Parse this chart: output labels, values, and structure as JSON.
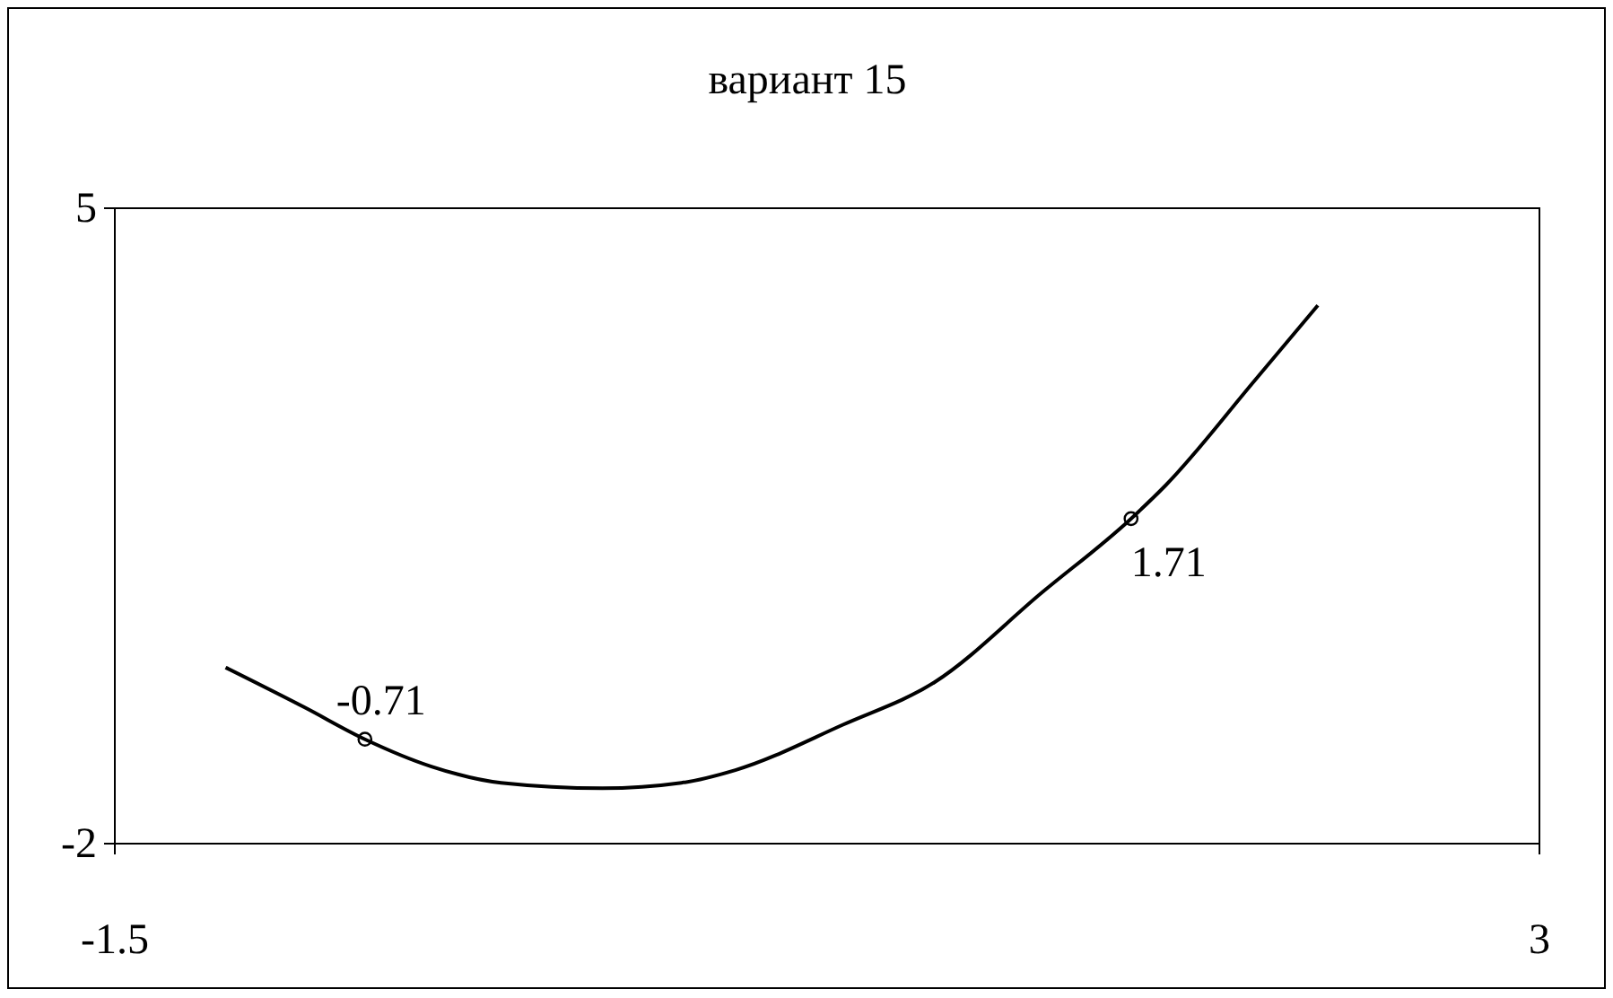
{
  "chart_data": {
    "type": "line",
    "title": "вариант 15",
    "xlim": [
      -1.5,
      3
    ],
    "xticks": [
      -1.5,
      3
    ],
    "ylim": [
      -2,
      5
    ],
    "yticks": [
      5,
      -2
    ],
    "grid": false,
    "series": [
      {
        "color": "#000000",
        "marker": "none",
        "line_style": "solid",
        "x": [
          -1.15,
          -0.9,
          -0.71,
          -0.5,
          -0.28,
          0.04,
          0.29,
          0.46,
          0.8,
          1.09,
          1.43,
          1.71,
          1.82,
          2.1,
          2.3
        ],
        "values": [
          -0.06,
          -0.5,
          -0.85,
          -1.15,
          -1.33,
          -1.39,
          -1.33,
          -1.19,
          -0.69,
          -0.22,
          0.77,
          1.58,
          1.95,
          3.1,
          3.93
        ]
      },
      {
        "type": "scatter",
        "color": "#000000",
        "marker": "circle",
        "x": [
          -0.71,
          1.71
        ],
        "values": [
          -0.85,
          1.58
        ]
      }
    ],
    "annotations": [
      {
        "text": "-0.71",
        "x": -0.71,
        "y": -0.85
      },
      {
        "text": "1.71",
        "x": 1.71,
        "y": 1.58
      }
    ]
  }
}
